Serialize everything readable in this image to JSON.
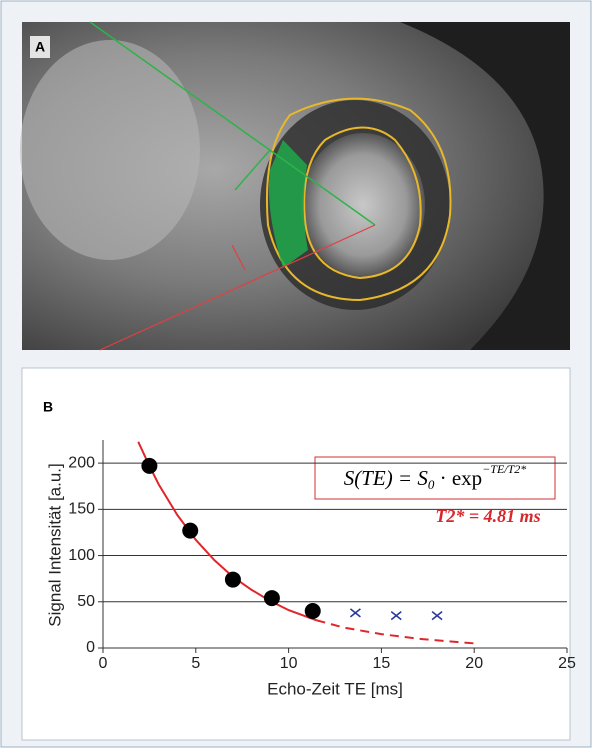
{
  "panels": {
    "a_label": "A",
    "b_label": "B"
  },
  "chart_data": {
    "type": "line",
    "xlabel": "Echo-Zeit TE [ms]",
    "ylabel": "Signal Intensität [a.u.]",
    "xlim": [
      0,
      25
    ],
    "xticks": [
      0,
      5,
      10,
      15,
      20,
      25
    ],
    "ylim": [
      0,
      225
    ],
    "yticks": [
      0,
      50,
      100,
      150,
      200
    ],
    "grid": true,
    "formula": {
      "lhs": "S(TE) = S",
      "sub": "0",
      "mid": " · exp",
      "sup": "−TE/T2*"
    },
    "annotation": "T2* = 4.81 ms",
    "series": [
      {
        "color": "#e0262a",
        "style": "solid",
        "x": [
          1.9,
          2.5,
          3,
          4,
          5,
          6,
          7,
          8,
          9,
          10,
          11.5
        ],
        "values": [
          223,
          197,
          177,
          144,
          117,
          95,
          77,
          63,
          51,
          41,
          30
        ]
      },
      {
        "color": "#e0262a",
        "style": "dashed",
        "x": [
          11.5,
          13,
          15,
          17,
          20
        ],
        "values": [
          30,
          22,
          15,
          10,
          5
        ]
      },
      {
        "color": "#000000",
        "style": "circle",
        "x": [
          2.5,
          4.7,
          7,
          9.1,
          11.3
        ],
        "values": [
          197,
          127,
          74,
          54,
          40
        ]
      },
      {
        "color": "#2b3a9a",
        "style": "cross",
        "x": [
          13.6,
          15.8,
          18
        ],
        "values": [
          38,
          35,
          35
        ]
      }
    ]
  }
}
